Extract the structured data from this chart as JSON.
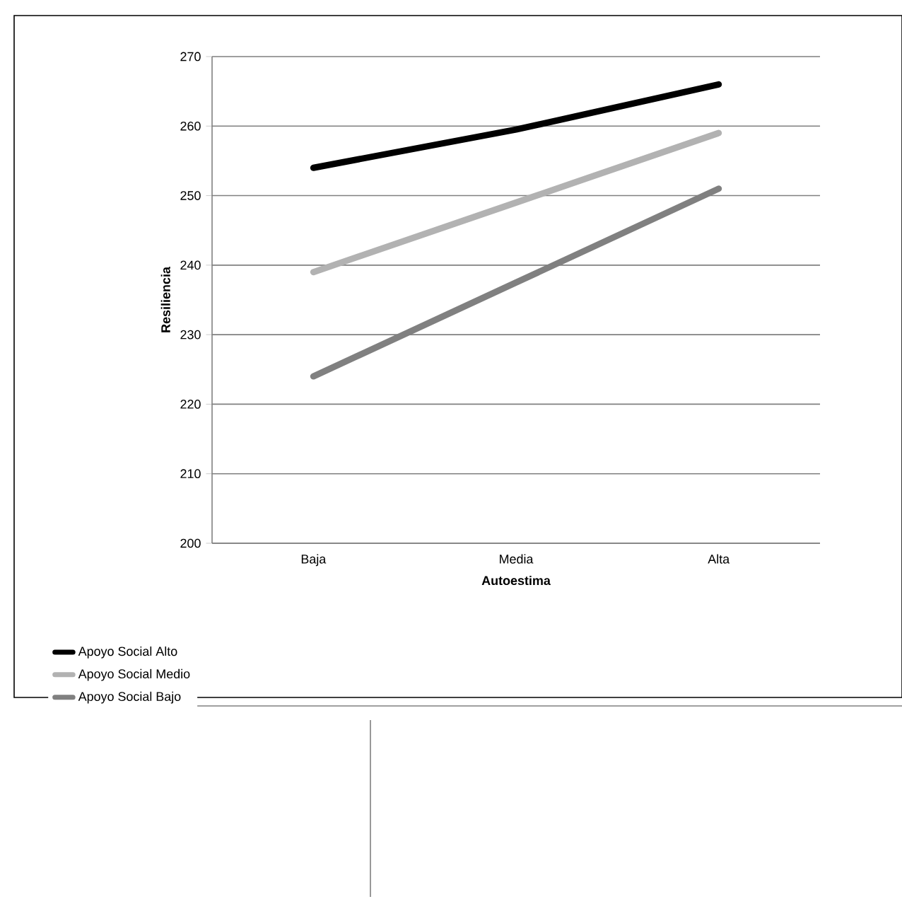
{
  "chart_data": {
    "type": "line",
    "xlabel": "Autoestima",
    "ylabel": "Resiliencia",
    "categories": [
      "Baja",
      "Media",
      "Alta"
    ],
    "series": [
      {
        "name": "Apoyo Social Alto",
        "color": "#000000",
        "values": [
          254,
          259.5,
          266
        ]
      },
      {
        "name": "Apoyo Social Medio",
        "color": "#b2b2b2",
        "values": [
          239,
          249,
          259
        ]
      },
      {
        "name": "Apoyo Social Bajo",
        "color": "#808080",
        "values": [
          224,
          237.5,
          251
        ]
      }
    ],
    "ylim": [
      200,
      270
    ],
    "yticks": [
      200,
      210,
      220,
      230,
      240,
      250,
      260,
      270
    ],
    "grid": "y",
    "legend": "bottom left",
    "marker": "none",
    "line_style": "solid"
  }
}
